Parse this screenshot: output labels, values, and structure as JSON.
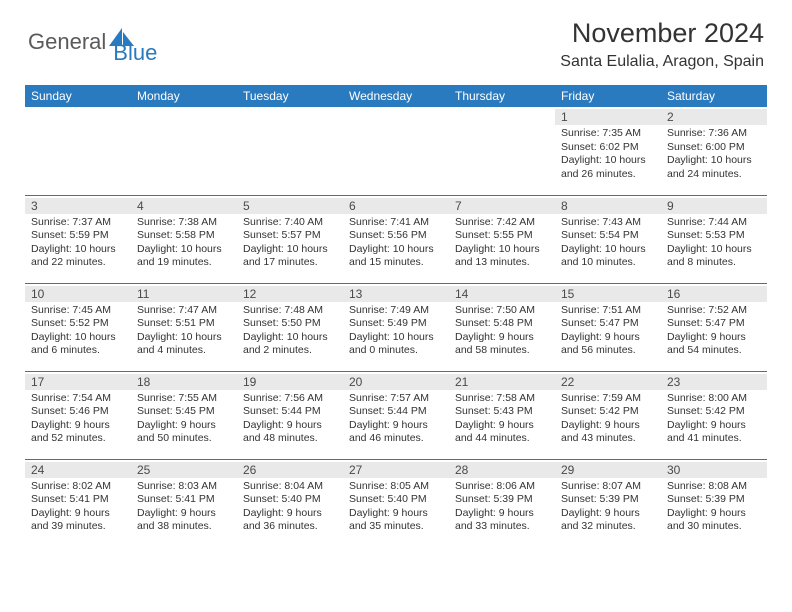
{
  "brand": {
    "general": "General",
    "blue": "Blue"
  },
  "title": "November 2024",
  "location": "Santa Eulalia, Aragon, Spain",
  "colors": {
    "accent": "#2a7abf",
    "daynum_bg": "#e9e9e9",
    "text": "#333333",
    "logo_gray": "#5a5a5a"
  },
  "day_headers": [
    "Sunday",
    "Monday",
    "Tuesday",
    "Wednesday",
    "Thursday",
    "Friday",
    "Saturday"
  ],
  "weeks": [
    [
      {
        "n": "",
        "sr": "",
        "ss": "",
        "dl": ""
      },
      {
        "n": "",
        "sr": "",
        "ss": "",
        "dl": ""
      },
      {
        "n": "",
        "sr": "",
        "ss": "",
        "dl": ""
      },
      {
        "n": "",
        "sr": "",
        "ss": "",
        "dl": ""
      },
      {
        "n": "",
        "sr": "",
        "ss": "",
        "dl": ""
      },
      {
        "n": "1",
        "sr": "Sunrise: 7:35 AM",
        "ss": "Sunset: 6:02 PM",
        "dl": "Daylight: 10 hours and 26 minutes."
      },
      {
        "n": "2",
        "sr": "Sunrise: 7:36 AM",
        "ss": "Sunset: 6:00 PM",
        "dl": "Daylight: 10 hours and 24 minutes."
      }
    ],
    [
      {
        "n": "3",
        "sr": "Sunrise: 7:37 AM",
        "ss": "Sunset: 5:59 PM",
        "dl": "Daylight: 10 hours and 22 minutes."
      },
      {
        "n": "4",
        "sr": "Sunrise: 7:38 AM",
        "ss": "Sunset: 5:58 PM",
        "dl": "Daylight: 10 hours and 19 minutes."
      },
      {
        "n": "5",
        "sr": "Sunrise: 7:40 AM",
        "ss": "Sunset: 5:57 PM",
        "dl": "Daylight: 10 hours and 17 minutes."
      },
      {
        "n": "6",
        "sr": "Sunrise: 7:41 AM",
        "ss": "Sunset: 5:56 PM",
        "dl": "Daylight: 10 hours and 15 minutes."
      },
      {
        "n": "7",
        "sr": "Sunrise: 7:42 AM",
        "ss": "Sunset: 5:55 PM",
        "dl": "Daylight: 10 hours and 13 minutes."
      },
      {
        "n": "8",
        "sr": "Sunrise: 7:43 AM",
        "ss": "Sunset: 5:54 PM",
        "dl": "Daylight: 10 hours and 10 minutes."
      },
      {
        "n": "9",
        "sr": "Sunrise: 7:44 AM",
        "ss": "Sunset: 5:53 PM",
        "dl": "Daylight: 10 hours and 8 minutes."
      }
    ],
    [
      {
        "n": "10",
        "sr": "Sunrise: 7:45 AM",
        "ss": "Sunset: 5:52 PM",
        "dl": "Daylight: 10 hours and 6 minutes."
      },
      {
        "n": "11",
        "sr": "Sunrise: 7:47 AM",
        "ss": "Sunset: 5:51 PM",
        "dl": "Daylight: 10 hours and 4 minutes."
      },
      {
        "n": "12",
        "sr": "Sunrise: 7:48 AM",
        "ss": "Sunset: 5:50 PM",
        "dl": "Daylight: 10 hours and 2 minutes."
      },
      {
        "n": "13",
        "sr": "Sunrise: 7:49 AM",
        "ss": "Sunset: 5:49 PM",
        "dl": "Daylight: 10 hours and 0 minutes."
      },
      {
        "n": "14",
        "sr": "Sunrise: 7:50 AM",
        "ss": "Sunset: 5:48 PM",
        "dl": "Daylight: 9 hours and 58 minutes."
      },
      {
        "n": "15",
        "sr": "Sunrise: 7:51 AM",
        "ss": "Sunset: 5:47 PM",
        "dl": "Daylight: 9 hours and 56 minutes."
      },
      {
        "n": "16",
        "sr": "Sunrise: 7:52 AM",
        "ss": "Sunset: 5:47 PM",
        "dl": "Daylight: 9 hours and 54 minutes."
      }
    ],
    [
      {
        "n": "17",
        "sr": "Sunrise: 7:54 AM",
        "ss": "Sunset: 5:46 PM",
        "dl": "Daylight: 9 hours and 52 minutes."
      },
      {
        "n": "18",
        "sr": "Sunrise: 7:55 AM",
        "ss": "Sunset: 5:45 PM",
        "dl": "Daylight: 9 hours and 50 minutes."
      },
      {
        "n": "19",
        "sr": "Sunrise: 7:56 AM",
        "ss": "Sunset: 5:44 PM",
        "dl": "Daylight: 9 hours and 48 minutes."
      },
      {
        "n": "20",
        "sr": "Sunrise: 7:57 AM",
        "ss": "Sunset: 5:44 PM",
        "dl": "Daylight: 9 hours and 46 minutes."
      },
      {
        "n": "21",
        "sr": "Sunrise: 7:58 AM",
        "ss": "Sunset: 5:43 PM",
        "dl": "Daylight: 9 hours and 44 minutes."
      },
      {
        "n": "22",
        "sr": "Sunrise: 7:59 AM",
        "ss": "Sunset: 5:42 PM",
        "dl": "Daylight: 9 hours and 43 minutes."
      },
      {
        "n": "23",
        "sr": "Sunrise: 8:00 AM",
        "ss": "Sunset: 5:42 PM",
        "dl": "Daylight: 9 hours and 41 minutes."
      }
    ],
    [
      {
        "n": "24",
        "sr": "Sunrise: 8:02 AM",
        "ss": "Sunset: 5:41 PM",
        "dl": "Daylight: 9 hours and 39 minutes."
      },
      {
        "n": "25",
        "sr": "Sunrise: 8:03 AM",
        "ss": "Sunset: 5:41 PM",
        "dl": "Daylight: 9 hours and 38 minutes."
      },
      {
        "n": "26",
        "sr": "Sunrise: 8:04 AM",
        "ss": "Sunset: 5:40 PM",
        "dl": "Daylight: 9 hours and 36 minutes."
      },
      {
        "n": "27",
        "sr": "Sunrise: 8:05 AM",
        "ss": "Sunset: 5:40 PM",
        "dl": "Daylight: 9 hours and 35 minutes."
      },
      {
        "n": "28",
        "sr": "Sunrise: 8:06 AM",
        "ss": "Sunset: 5:39 PM",
        "dl": "Daylight: 9 hours and 33 minutes."
      },
      {
        "n": "29",
        "sr": "Sunrise: 8:07 AM",
        "ss": "Sunset: 5:39 PM",
        "dl": "Daylight: 9 hours and 32 minutes."
      },
      {
        "n": "30",
        "sr": "Sunrise: 8:08 AM",
        "ss": "Sunset: 5:39 PM",
        "dl": "Daylight: 9 hours and 30 minutes."
      }
    ]
  ]
}
